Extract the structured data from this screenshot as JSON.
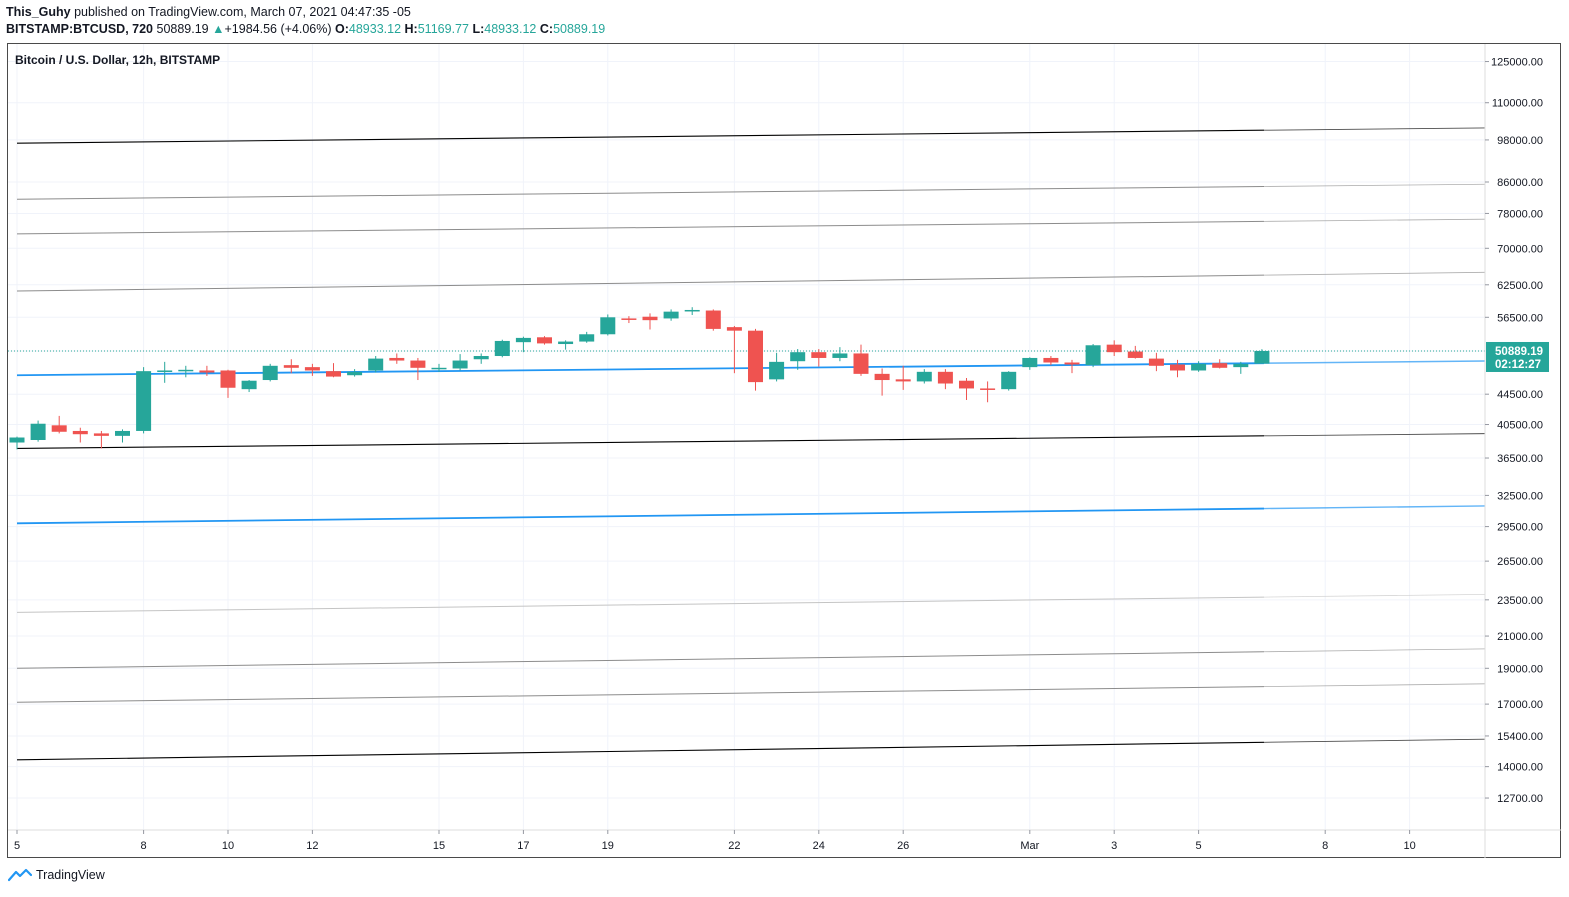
{
  "header": {
    "author": "This_Guhy",
    "published": "published on TradingView.com, March 07, 2021 04:47:35 -05",
    "symbol": "BITSTAMP:BTCUSD, 720",
    "last": "50889.19",
    "change": "+1984.56 (+4.06%)",
    "o_label": "O:",
    "o_value": "48933.12",
    "h_label": "H:",
    "h_value": "51169.77",
    "l_label": "L:",
    "l_value": "48933.12",
    "c_label": "C:",
    "c_value": "50889.19"
  },
  "legend_title": "Bitcoin / U.S. Dollar, 12h, BITSTAMP",
  "price_tag": {
    "price": "50889.19",
    "countdown": "02:12:27"
  },
  "footer": {
    "brand": "TradingView"
  },
  "colors": {
    "up": "#26a69a",
    "down": "#ef5350",
    "blue": "#2196f3",
    "last_line": "#26a69a"
  },
  "chart_data": {
    "type": "candlestick",
    "y_scale": "log",
    "ylim": [
      11500,
      132000
    ],
    "y_ticks": [
      125000,
      110000,
      98000,
      86000,
      78000,
      70000,
      62500,
      56500,
      50889.19,
      44500,
      40500,
      36500,
      32500,
      29500,
      26500,
      23500,
      21000,
      19000,
      17000,
      15400,
      14000,
      12700
    ],
    "y_tick_labels": [
      "125000.00",
      "110000.00",
      "98000.00",
      "86000.00",
      "78000.00",
      "70000.00",
      "62500.00",
      "56500.00",
      "",
      "44500.00",
      "40500.00",
      "36500.00",
      "32500.00",
      "29500.00",
      "26500.00",
      "23500.00",
      "21000.00",
      "19000.00",
      "17000.00",
      "15400.00",
      "14000.00",
      "12700.00"
    ],
    "x_ticks": [
      {
        "label": "5",
        "bar": 0.5
      },
      {
        "label": "8",
        "bar": 6.5
      },
      {
        "label": "10",
        "bar": 10.5
      },
      {
        "label": "12",
        "bar": 14.5
      },
      {
        "label": "15",
        "bar": 20.5
      },
      {
        "label": "17",
        "bar": 24.5
      },
      {
        "label": "19",
        "bar": 28.5
      },
      {
        "label": "22",
        "bar": 34.5
      },
      {
        "label": "24",
        "bar": 38.5
      },
      {
        "label": "26",
        "bar": 42.5
      },
      {
        "label": "Mar",
        "bar": 48.5
      },
      {
        "label": "3",
        "bar": 52.5
      },
      {
        "label": "5",
        "bar": 56.5
      },
      {
        "label": "8",
        "bar": 62.5
      },
      {
        "label": "10",
        "bar": 66.5
      }
    ],
    "candles": [
      {
        "o": 38300,
        "h": 39000,
        "l": 37500,
        "c": 38900
      },
      {
        "o": 38600,
        "h": 41000,
        "l": 38400,
        "c": 40600
      },
      {
        "o": 40400,
        "h": 41600,
        "l": 39400,
        "c": 39600
      },
      {
        "o": 39700,
        "h": 40100,
        "l": 38300,
        "c": 39300
      },
      {
        "o": 39400,
        "h": 39700,
        "l": 37600,
        "c": 39100
      },
      {
        "o": 39100,
        "h": 39900,
        "l": 38300,
        "c": 39700
      },
      {
        "o": 39700,
        "h": 48400,
        "l": 39400,
        "c": 47800
      },
      {
        "o": 47700,
        "h": 49200,
        "l": 46100,
        "c": 47900
      },
      {
        "o": 47800,
        "h": 48600,
        "l": 46900,
        "c": 48000
      },
      {
        "o": 47900,
        "h": 48600,
        "l": 47100,
        "c": 47600
      },
      {
        "o": 47900,
        "h": 48000,
        "l": 44000,
        "c": 45400
      },
      {
        "o": 45200,
        "h": 46500,
        "l": 44800,
        "c": 46400
      },
      {
        "o": 46500,
        "h": 48900,
        "l": 46300,
        "c": 48600
      },
      {
        "o": 48700,
        "h": 49600,
        "l": 47500,
        "c": 48300
      },
      {
        "o": 48400,
        "h": 48900,
        "l": 47100,
        "c": 47900
      },
      {
        "o": 47800,
        "h": 49000,
        "l": 46900,
        "c": 47000
      },
      {
        "o": 47200,
        "h": 48100,
        "l": 47000,
        "c": 47700
      },
      {
        "o": 47900,
        "h": 50100,
        "l": 47600,
        "c": 49700
      },
      {
        "o": 49800,
        "h": 50500,
        "l": 48900,
        "c": 49400
      },
      {
        "o": 49400,
        "h": 49800,
        "l": 46500,
        "c": 48300
      },
      {
        "o": 48100,
        "h": 48900,
        "l": 47700,
        "c": 48300
      },
      {
        "o": 48200,
        "h": 50400,
        "l": 47900,
        "c": 49400
      },
      {
        "o": 49600,
        "h": 50500,
        "l": 48900,
        "c": 50100
      },
      {
        "o": 50100,
        "h": 52700,
        "l": 49900,
        "c": 52500
      },
      {
        "o": 52300,
        "h": 53200,
        "l": 50700,
        "c": 53000
      },
      {
        "o": 53100,
        "h": 53300,
        "l": 51900,
        "c": 52100
      },
      {
        "o": 52000,
        "h": 52600,
        "l": 51100,
        "c": 52400
      },
      {
        "o": 52400,
        "h": 54000,
        "l": 52200,
        "c": 53600
      },
      {
        "o": 53600,
        "h": 57000,
        "l": 53400,
        "c": 56500
      },
      {
        "o": 56300,
        "h": 56700,
        "l": 55500,
        "c": 56100
      },
      {
        "o": 56600,
        "h": 57200,
        "l": 54400,
        "c": 56000
      },
      {
        "o": 56300,
        "h": 57900,
        "l": 55900,
        "c": 57500
      },
      {
        "o": 57600,
        "h": 58300,
        "l": 56900,
        "c": 57800
      },
      {
        "o": 57700,
        "h": 57900,
        "l": 54200,
        "c": 54500
      },
      {
        "o": 54800,
        "h": 55000,
        "l": 47500,
        "c": 54200
      },
      {
        "o": 54200,
        "h": 54500,
        "l": 45000,
        "c": 46200
      },
      {
        "o": 46600,
        "h": 50600,
        "l": 46300,
        "c": 49200
      },
      {
        "o": 49300,
        "h": 51200,
        "l": 48000,
        "c": 50700
      },
      {
        "o": 50700,
        "h": 51200,
        "l": 48500,
        "c": 49800
      },
      {
        "o": 49800,
        "h": 51500,
        "l": 49300,
        "c": 50500
      },
      {
        "o": 50500,
        "h": 51900,
        "l": 47100,
        "c": 47400
      },
      {
        "o": 47400,
        "h": 48200,
        "l": 44300,
        "c": 46500
      },
      {
        "o": 46600,
        "h": 48600,
        "l": 45100,
        "c": 46300
      },
      {
        "o": 46300,
        "h": 48100,
        "l": 46000,
        "c": 47700
      },
      {
        "o": 47700,
        "h": 48100,
        "l": 45200,
        "c": 46000
      },
      {
        "o": 46400,
        "h": 46800,
        "l": 43700,
        "c": 45300
      },
      {
        "o": 45300,
        "h": 46300,
        "l": 43400,
        "c": 45200
      },
      {
        "o": 45200,
        "h": 47800,
        "l": 45000,
        "c": 47700
      },
      {
        "o": 48400,
        "h": 49900,
        "l": 48000,
        "c": 49800
      },
      {
        "o": 49800,
        "h": 50100,
        "l": 48700,
        "c": 49100
      },
      {
        "o": 49100,
        "h": 49500,
        "l": 47500,
        "c": 48800
      },
      {
        "o": 48700,
        "h": 52000,
        "l": 48400,
        "c": 51800
      },
      {
        "o": 51900,
        "h": 52600,
        "l": 50100,
        "c": 50700
      },
      {
        "o": 50800,
        "h": 51700,
        "l": 49700,
        "c": 49800
      },
      {
        "o": 49700,
        "h": 50600,
        "l": 47800,
        "c": 48600
      },
      {
        "o": 48800,
        "h": 49500,
        "l": 46900,
        "c": 47900
      },
      {
        "o": 47900,
        "h": 49300,
        "l": 47700,
        "c": 48900
      },
      {
        "o": 49000,
        "h": 49600,
        "l": 48200,
        "c": 48300
      },
      {
        "o": 48400,
        "h": 49200,
        "l": 47400,
        "c": 48900
      },
      {
        "o": 48933.12,
        "h": 51169.77,
        "l": 48933.12,
        "c": 50889.19
      }
    ],
    "bar_count": 71,
    "lines": [
      {
        "name": "",
        "color": "#000000",
        "width": 1.1,
        "start": 97000,
        "end": 101000
      },
      {
        "name": "",
        "color": "#8c8c8c",
        "width": 1,
        "start": 81500,
        "end": 84800
      },
      {
        "name": "",
        "color": "#8c8c8c",
        "width": 1,
        "start": 73200,
        "end": 76100
      },
      {
        "name": "",
        "color": "#8c8c8c",
        "width": 1,
        "start": 61300,
        "end": 64400
      },
      {
        "name": "",
        "color": "#2196f3",
        "width": 1.8,
        "start": 47200,
        "end": 49000
      },
      {
        "name": "",
        "color": "#000000",
        "width": 1.1,
        "start": 37600,
        "end": 39100
      },
      {
        "name": "",
        "color": "#2196f3",
        "width": 1.8,
        "start": 29800,
        "end": 31200
      },
      {
        "name": "",
        "color": "#c4c4c4",
        "width": 1,
        "start": 22600,
        "end": 23700
      },
      {
        "name": "",
        "color": "#8c8c8c",
        "width": 1,
        "start": 19000,
        "end": 20000
      },
      {
        "name": "",
        "color": "#8c8c8c",
        "width": 1,
        "start": 17100,
        "end": 17950
      },
      {
        "name": "",
        "color": "#000000",
        "width": 1.1,
        "start": 14300,
        "end": 15100
      }
    ]
  }
}
